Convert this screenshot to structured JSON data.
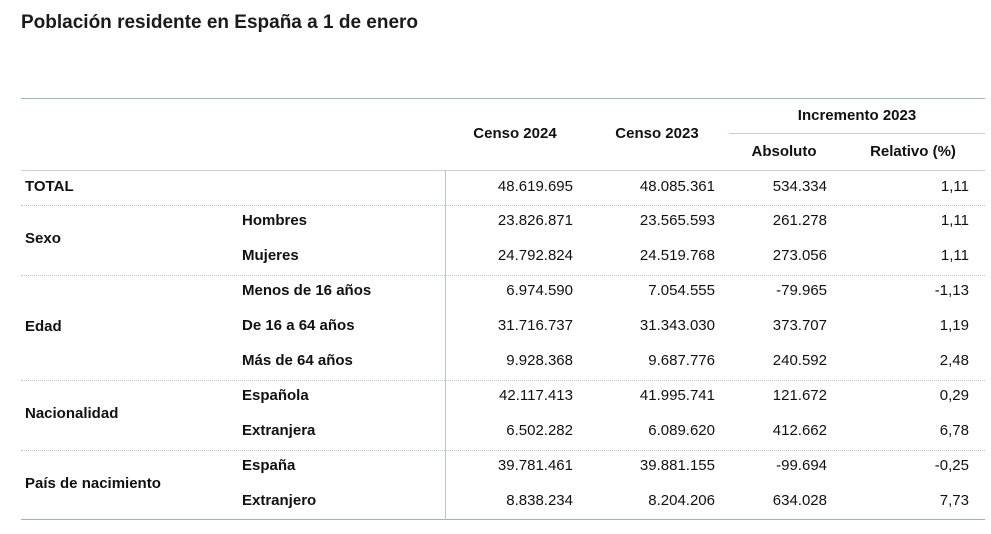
{
  "title": "Población residente en España a 1 de enero",
  "table": {
    "headers": {
      "censo_2024": "Censo 2024",
      "censo_2023": "Censo 2023",
      "incremento": "Incremento 2023",
      "absoluto": "Absoluto",
      "relativo": "Relativo (%)"
    },
    "total": {
      "label": "TOTAL",
      "censo_2024": "48.619.695",
      "censo_2023": "48.085.361",
      "absoluto": "534.334",
      "relativo": "1,11"
    },
    "groups": [
      {
        "label": "Sexo",
        "rows": [
          {
            "label": "Hombres",
            "censo_2024": "23.826.871",
            "censo_2023": "23.565.593",
            "absoluto": "261.278",
            "relativo": "1,11"
          },
          {
            "label": "Mujeres",
            "censo_2024": "24.792.824",
            "censo_2023": "24.519.768",
            "absoluto": "273.056",
            "relativo": "1,11"
          }
        ]
      },
      {
        "label": "Edad",
        "rows": [
          {
            "label": "Menos de 16 años",
            "censo_2024": "6.974.590",
            "censo_2023": "7.054.555",
            "absoluto": "-79.965",
            "relativo": "-1,13"
          },
          {
            "label": "De 16 a 64 años",
            "censo_2024": "31.716.737",
            "censo_2023": "31.343.030",
            "absoluto": "373.707",
            "relativo": "1,19"
          },
          {
            "label": "Más de 64 años",
            "censo_2024": "9.928.368",
            "censo_2023": "9.687.776",
            "absoluto": "240.592",
            "relativo": "2,48"
          }
        ]
      },
      {
        "label": "Nacionalidad",
        "rows": [
          {
            "label": "Española",
            "censo_2024": "42.117.413",
            "censo_2023": "41.995.741",
            "absoluto": "121.672",
            "relativo": "0,29"
          },
          {
            "label": "Extranjera",
            "censo_2024": "6.502.282",
            "censo_2023": "6.089.620",
            "absoluto": "412.662",
            "relativo": "6,78"
          }
        ]
      },
      {
        "label": "País de nacimiento",
        "rows": [
          {
            "label": "España",
            "censo_2024": "39.781.461",
            "censo_2023": "39.881.155",
            "absoluto": "-99.694",
            "relativo": "-0,25"
          },
          {
            "label": "Extranjero",
            "censo_2024": "8.838.234",
            "censo_2023": "8.204.206",
            "absoluto": "634.028",
            "relativo": "7,73"
          }
        ]
      }
    ]
  }
}
